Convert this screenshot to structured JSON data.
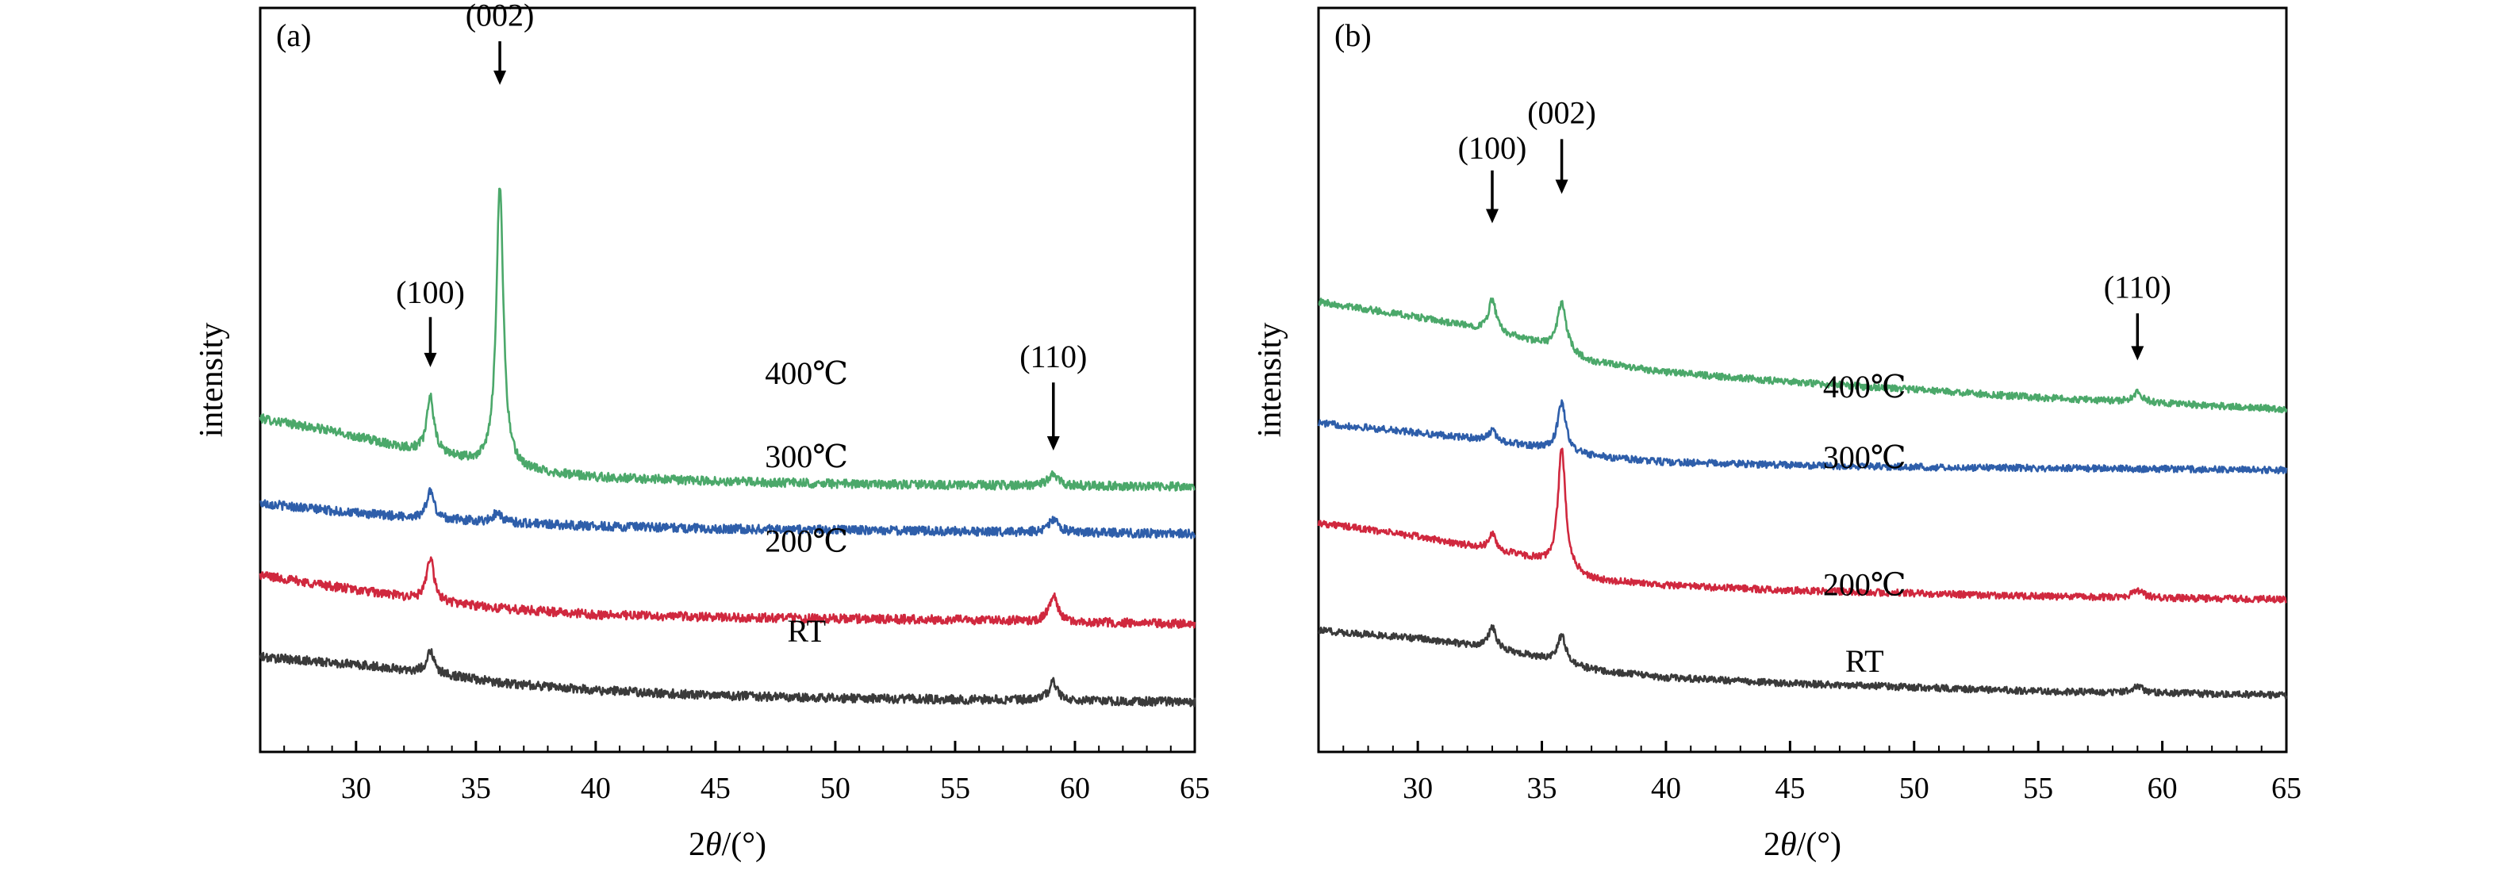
{
  "chart_data": [
    {
      "type": "line",
      "panel_label": "(a)",
      "xlabel_prefix": "2",
      "xlabel_symbol": "θ",
      "xlabel_suffix": "/(°)",
      "ylabel": "intensity",
      "xlim": [
        26,
        65
      ],
      "xticks": [
        30,
        35,
        40,
        45,
        50,
        55,
        60,
        65
      ],
      "y_ticks_shown": false,
      "grid": false,
      "series": [
        {
          "name": "400℃",
          "color": "#4BA86A",
          "label_at": {
            "x": 48.8,
            "y": 0.885
          },
          "baseline": [
            [
              26,
              0.75
            ],
            [
              29,
              0.7
            ],
            [
              32,
              0.635
            ],
            [
              33.5,
              0.61
            ],
            [
              35.2,
              0.57
            ],
            [
              37,
              0.545
            ],
            [
              40,
              0.52
            ],
            [
              45,
              0.505
            ],
            [
              50,
              0.495
            ],
            [
              55,
              0.49
            ],
            [
              60,
              0.487
            ],
            [
              65,
              0.485
            ]
          ],
          "peaks": [
            {
              "x": 33.1,
              "h": 0.22,
              "w": 0.17
            },
            {
              "x": 36.0,
              "h": 1.1,
              "w": 0.18
            },
            {
              "x": 59.1,
              "h": 0.045,
              "w": 0.25
            }
          ]
        },
        {
          "name": "300℃",
          "color": "#2E5EAA",
          "label_at": {
            "x": 48.8,
            "y": 0.56
          },
          "baseline": [
            [
              26,
              0.42
            ],
            [
              30,
              0.38
            ],
            [
              33,
              0.36
            ],
            [
              36,
              0.345
            ],
            [
              40,
              0.33
            ],
            [
              45,
              0.32
            ],
            [
              50,
              0.315
            ],
            [
              55,
              0.31
            ],
            [
              60,
              0.305
            ],
            [
              65,
              0.3
            ]
          ],
          "peaks": [
            {
              "x": 33.1,
              "h": 0.11,
              "w": 0.18
            },
            {
              "x": 35.9,
              "h": 0.04,
              "w": 0.2
            },
            {
              "x": 59.1,
              "h": 0.05,
              "w": 0.25
            }
          ]
        },
        {
          "name": "200℃",
          "color": "#D0283E",
          "label_at": {
            "x": 48.8,
            "y": 0.23
          },
          "baseline": [
            [
              26,
              0.14
            ],
            [
              29,
              0.095
            ],
            [
              32,
              0.055
            ],
            [
              34,
              0.03
            ],
            [
              36,
              0.01
            ],
            [
              40,
              -0.015
            ],
            [
              45,
              -0.025
            ],
            [
              50,
              -0.03
            ],
            [
              55,
              -0.035
            ],
            [
              58,
              -0.04
            ],
            [
              60,
              -0.045
            ],
            [
              65,
              -0.05
            ]
          ],
          "peaks": [
            {
              "x": 33.1,
              "h": 0.17,
              "w": 0.17
            },
            {
              "x": 59.1,
              "h": 0.1,
              "w": 0.22
            }
          ]
        },
        {
          "name": "RT",
          "color": "#3A3A3A",
          "label_at": {
            "x": 48.8,
            "y": -0.12
          },
          "baseline": [
            [
              26,
              -0.18
            ],
            [
              30,
              -0.21
            ],
            [
              33,
              -0.24
            ],
            [
              36,
              -0.28
            ],
            [
              40,
              -0.31
            ],
            [
              45,
              -0.33
            ],
            [
              50,
              -0.34
            ],
            [
              55,
              -0.345
            ],
            [
              60,
              -0.35
            ],
            [
              65,
              -0.355
            ]
          ],
          "peaks": [
            {
              "x": 33.1,
              "h": 0.09,
              "w": 0.17
            },
            {
              "x": 59.1,
              "h": 0.07,
              "w": 0.22
            }
          ]
        }
      ],
      "annotations": [
        {
          "text": "(100)",
          "x": 33.1,
          "label_y": 1.2,
          "arrow_from": 1.145,
          "arrow_to": 0.95
        },
        {
          "text": "(002)",
          "x": 36.0,
          "label_y": 2.28,
          "arrow_from": 2.22,
          "arrow_to": 2.05
        },
        {
          "text": "(110)",
          "x": 59.1,
          "label_y": 0.95,
          "arrow_from": 0.89,
          "arrow_to": 0.625
        }
      ],
      "ylim": [
        -0.55,
        2.35
      ]
    },
    {
      "type": "line",
      "panel_label": "(b)",
      "xlabel_prefix": "2",
      "xlabel_symbol": "θ",
      "xlabel_suffix": "/(°)",
      "ylabel": "intensity",
      "xlim": [
        26,
        65
      ],
      "xticks": [
        30,
        35,
        40,
        45,
        50,
        55,
        60,
        65
      ],
      "y_ticks_shown": false,
      "grid": false,
      "series": [
        {
          "name": "400℃",
          "color": "#4BA86A",
          "label_at": {
            "x": 48.0,
            "y": 1.06
          },
          "baseline": [
            [
              26,
              1.55
            ],
            [
              30,
              1.47
            ],
            [
              33,
              1.4
            ],
            [
              35,
              1.33
            ],
            [
              37,
              1.24
            ],
            [
              40,
              1.19
            ],
            [
              45,
              1.14
            ],
            [
              50,
              1.1
            ],
            [
              55,
              1.06
            ],
            [
              60,
              1.03
            ],
            [
              65,
              1.0
            ]
          ],
          "peaks": [
            {
              "x": 33.0,
              "h": 0.16,
              "w": 0.18
            },
            {
              "x": 35.8,
              "h": 0.25,
              "w": 0.22
            },
            {
              "x": 59.0,
              "h": 0.05,
              "w": 0.25
            }
          ]
        },
        {
          "name": "300℃",
          "color": "#2E5EAA",
          "label_at": {
            "x": 48.0,
            "y": 0.7
          },
          "baseline": [
            [
              26,
              0.93
            ],
            [
              30,
              0.88
            ],
            [
              33,
              0.84
            ],
            [
              35,
              0.8
            ],
            [
              37,
              0.76
            ],
            [
              40,
              0.73
            ],
            [
              45,
              0.715
            ],
            [
              50,
              0.705
            ],
            [
              55,
              0.7
            ],
            [
              60,
              0.695
            ],
            [
              65,
              0.69
            ]
          ],
          "peaks": [
            {
              "x": 33.0,
              "h": 0.05,
              "w": 0.18
            },
            {
              "x": 35.8,
              "h": 0.25,
              "w": 0.2
            }
          ]
        },
        {
          "name": "200℃",
          "color": "#D0283E",
          "label_at": {
            "x": 48.0,
            "y": 0.05
          },
          "baseline": [
            [
              26,
              0.42
            ],
            [
              30,
              0.35
            ],
            [
              33,
              0.28
            ],
            [
              34.5,
              0.24
            ],
            [
              36,
              0.18
            ],
            [
              37,
              0.13
            ],
            [
              40,
              0.1
            ],
            [
              45,
              0.075
            ],
            [
              50,
              0.06
            ],
            [
              55,
              0.045
            ],
            [
              60,
              0.035
            ],
            [
              65,
              0.03
            ]
          ],
          "peaks": [
            {
              "x": 33.0,
              "h": 0.08,
              "w": 0.18
            },
            {
              "x": 35.8,
              "h": 0.62,
              "w": 0.18
            },
            {
              "x": 59.0,
              "h": 0.035,
              "w": 0.3
            }
          ]
        },
        {
          "name": "RT",
          "color": "#3A3A3A",
          "label_at": {
            "x": 48.0,
            "y": -0.34
          },
          "baseline": [
            [
              26,
              -0.13
            ],
            [
              30,
              -0.17
            ],
            [
              33,
              -0.22
            ],
            [
              35,
              -0.27
            ],
            [
              37,
              -0.33
            ],
            [
              40,
              -0.37
            ],
            [
              45,
              -0.4
            ],
            [
              50,
              -0.42
            ],
            [
              55,
              -0.44
            ],
            [
              60,
              -0.45
            ],
            [
              65,
              -0.46
            ]
          ],
          "peaks": [
            {
              "x": 33.0,
              "h": 0.11,
              "w": 0.18
            },
            {
              "x": 35.8,
              "h": 0.14,
              "w": 0.2
            },
            {
              "x": 59.0,
              "h": 0.035,
              "w": 0.25
            }
          ]
        }
      ],
      "annotations": [
        {
          "text": "(100)",
          "x": 33.0,
          "label_y": 2.28,
          "arrow_from": 2.22,
          "arrow_to": 1.95
        },
        {
          "text": "(002)",
          "x": 35.8,
          "label_y": 2.46,
          "arrow_from": 2.38,
          "arrow_to": 2.1
        },
        {
          "text": "(110)",
          "x": 59.0,
          "label_y": 1.57,
          "arrow_from": 1.49,
          "arrow_to": 1.25
        }
      ],
      "ylim": [
        -0.75,
        3.05
      ]
    }
  ]
}
